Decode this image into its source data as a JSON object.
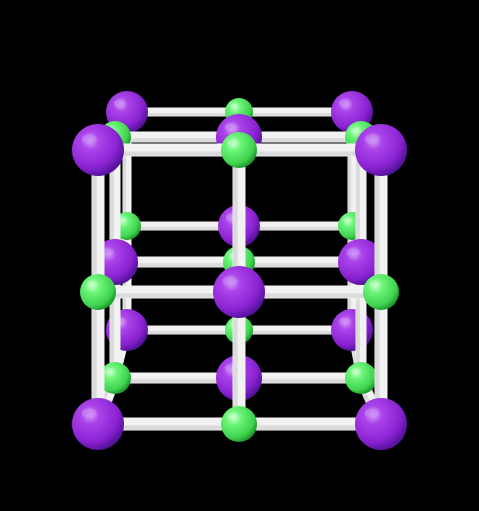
{
  "scene": {
    "subject": "crystal-lattice-model",
    "background_color": "#000000",
    "bond_color": "#f2f2f2",
    "bond_shade": "#c9c9c9",
    "atom_types": {
      "large": {
        "color": "#9b30e0",
        "shade": "#5e16a0",
        "highlight": "#c98af2",
        "icon": "purple-sphere"
      },
      "small": {
        "color": "#5cf06a",
        "shade": "#22a832",
        "highlight": "#b8ffbf",
        "icon": "green-sphere"
      }
    }
  }
}
